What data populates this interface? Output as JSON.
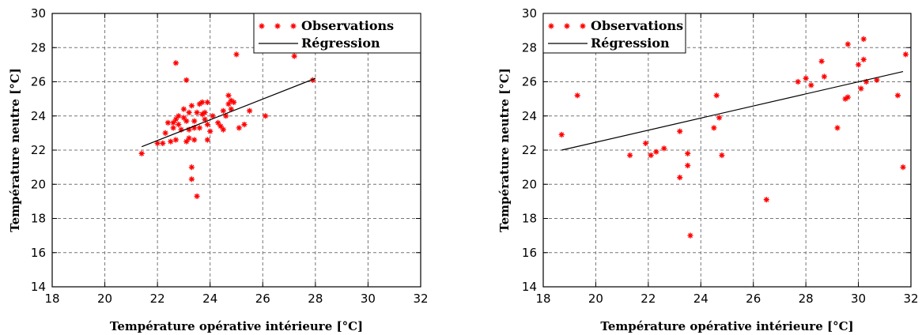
{
  "chart_data": [
    {
      "type": "scatter",
      "xlabel": "Température opérative intérieure [°C]",
      "ylabel": "Température neutre [°C]",
      "xlim": [
        18,
        32
      ],
      "ylim": [
        14,
        30
      ],
      "xticks": [
        18,
        20,
        22,
        24,
        26,
        28,
        30,
        32
      ],
      "yticks": [
        14,
        16,
        18,
        20,
        22,
        24,
        26,
        28,
        30
      ],
      "grid": true,
      "legend_position": "top-right",
      "series": [
        {
          "name": "Observations",
          "marker": "*",
          "color": "#ff0000",
          "points": [
            [
              21.4,
              21.8
            ],
            [
              22.0,
              22.4
            ],
            [
              22.2,
              22.4
            ],
            [
              22.3,
              23.0
            ],
            [
              22.4,
              23.6
            ],
            [
              22.5,
              22.5
            ],
            [
              22.6,
              23.3
            ],
            [
              22.6,
              23.6
            ],
            [
              22.7,
              27.1
            ],
            [
              22.7,
              22.6
            ],
            [
              22.7,
              23.8
            ],
            [
              22.8,
              23.5
            ],
            [
              22.8,
              24.0
            ],
            [
              22.9,
              23.2
            ],
            [
              23.0,
              23.9
            ],
            [
              23.0,
              24.4
            ],
            [
              23.1,
              23.7
            ],
            [
              23.1,
              22.5
            ],
            [
              23.1,
              26.1
            ],
            [
              23.2,
              22.7
            ],
            [
              23.2,
              23.2
            ],
            [
              23.2,
              24.2
            ],
            [
              23.3,
              24.6
            ],
            [
              23.3,
              21.0
            ],
            [
              23.3,
              20.3
            ],
            [
              23.4,
              23.7
            ],
            [
              23.4,
              22.6
            ],
            [
              23.4,
              23.3
            ],
            [
              23.5,
              19.3
            ],
            [
              23.5,
              24.2
            ],
            [
              23.6,
              24.7
            ],
            [
              23.6,
              23.3
            ],
            [
              23.7,
              24.1
            ],
            [
              23.7,
              24.8
            ],
            [
              23.8,
              24.2
            ],
            [
              23.8,
              23.8
            ],
            [
              23.9,
              22.6
            ],
            [
              23.9,
              24.8
            ],
            [
              23.9,
              23.5
            ],
            [
              24.0,
              23.1
            ],
            [
              24.1,
              24.0
            ],
            [
              24.3,
              23.6
            ],
            [
              24.4,
              23.4
            ],
            [
              24.5,
              24.3
            ],
            [
              24.5,
              23.2
            ],
            [
              24.6,
              24.0
            ],
            [
              24.7,
              25.2
            ],
            [
              24.7,
              24.7
            ],
            [
              24.8,
              24.9
            ],
            [
              24.8,
              24.4
            ],
            [
              24.9,
              24.8
            ],
            [
              25.1,
              23.3
            ],
            [
              25.3,
              23.5
            ],
            [
              25.5,
              24.3
            ],
            [
              25.0,
              27.6
            ],
            [
              26.1,
              24.0
            ],
            [
              27.2,
              27.5
            ],
            [
              27.9,
              26.1
            ]
          ]
        },
        {
          "name": "Régression",
          "color": "#000000",
          "line": [
            [
              21.4,
              22.2
            ],
            [
              28.0,
              26.2
            ]
          ]
        }
      ]
    },
    {
      "type": "scatter",
      "xlabel": "Température opérative intérieure [°C]",
      "ylabel": "Température neutre [°C]",
      "xlim": [
        18,
        32
      ],
      "ylim": [
        14,
        30
      ],
      "xticks": [
        18,
        20,
        22,
        24,
        26,
        28,
        30,
        32
      ],
      "yticks": [
        14,
        16,
        18,
        20,
        22,
        24,
        26,
        28,
        30
      ],
      "grid": true,
      "legend_position": "top-left",
      "series": [
        {
          "name": "Observations",
          "marker": "*",
          "color": "#ff0000",
          "points": [
            [
              18.7,
              22.9
            ],
            [
              19.3,
              25.2
            ],
            [
              21.3,
              21.7
            ],
            [
              21.9,
              22.4
            ],
            [
              22.1,
              21.7
            ],
            [
              22.3,
              21.9
            ],
            [
              22.6,
              22.1
            ],
            [
              23.2,
              23.1
            ],
            [
              23.2,
              20.4
            ],
            [
              23.5,
              21.8
            ],
            [
              23.5,
              21.1
            ],
            [
              23.6,
              17.0
            ],
            [
              24.5,
              23.3
            ],
            [
              24.6,
              25.2
            ],
            [
              24.7,
              23.9
            ],
            [
              24.8,
              21.7
            ],
            [
              26.5,
              19.1
            ],
            [
              27.7,
              26.0
            ],
            [
              28.0,
              26.2
            ],
            [
              28.2,
              25.8
            ],
            [
              28.6,
              27.2
            ],
            [
              28.7,
              26.3
            ],
            [
              29.2,
              23.3
            ],
            [
              29.5,
              25.0
            ],
            [
              29.6,
              25.1
            ],
            [
              29.6,
              28.2
            ],
            [
              30.0,
              27.0
            ],
            [
              30.1,
              25.6
            ],
            [
              30.2,
              28.5
            ],
            [
              30.2,
              27.3
            ],
            [
              30.3,
              26.0
            ],
            [
              30.7,
              26.1
            ],
            [
              31.5,
              25.2
            ],
            [
              31.7,
              21.0
            ],
            [
              31.8,
              27.6
            ]
          ]
        },
        {
          "name": "Régression",
          "color": "#000000",
          "line": [
            [
              18.7,
              22.0
            ],
            [
              31.7,
              26.6
            ]
          ]
        }
      ]
    }
  ]
}
